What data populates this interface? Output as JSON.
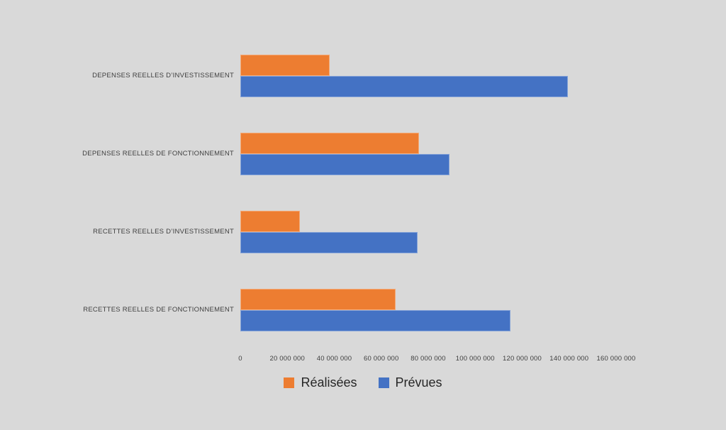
{
  "page": {
    "background_color": "#D9D9D9"
  },
  "chart_data": {
    "type": "bar",
    "orientation": "horizontal",
    "title": "",
    "categories": [
      "DEPENSES REELLES D’INVESTISSEMENT",
      "DEPENSES REELLES DE FONCTIONNEMENT",
      "RECETTES REELLES D’INVESTISSEMENT",
      "RECETTES REELLES DE FONCTIONNEMENT"
    ],
    "series": [
      {
        "key": "realisees",
        "name": "Réalisées",
        "color": "#ED7D31",
        "values": [
          38000000,
          76000000,
          25500000,
          66000000
        ]
      },
      {
        "key": "prevues",
        "name": "Prévues",
        "color": "#4472C4",
        "values": [
          139500000,
          89000000,
          75500000,
          115000000
        ]
      }
    ],
    "xlim": [
      0,
      160000000
    ],
    "x_ticks": [
      0,
      20000000,
      40000000,
      60000000,
      80000000,
      100000000,
      120000000,
      140000000,
      160000000
    ],
    "x_tick_labels": [
      "0",
      "20 000 000",
      "40 000 000",
      "60 000 000",
      "80 000 000",
      "100 000 000",
      "120 000 000",
      "140 000 000",
      "160 000 000"
    ],
    "grid": false,
    "legend_position": "bottom"
  }
}
